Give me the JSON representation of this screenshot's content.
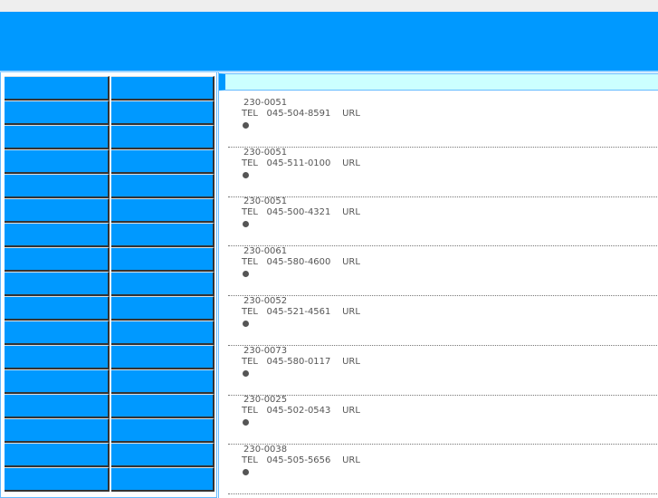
{
  "colors": {
    "brand": "#0099ff",
    "section_header": "#ccffff"
  },
  "sidebar": {
    "rows": 17,
    "columns": 2
  },
  "entries": [
    {
      "postal": "230-0051",
      "tel_label": "TEL",
      "tel": "045-504-8591",
      "url_label": "URL"
    },
    {
      "postal": "230-0051",
      "tel_label": "TEL",
      "tel": "045-511-0100",
      "url_label": "URL"
    },
    {
      "postal": "230-0051",
      "tel_label": "TEL",
      "tel": "045-500-4321",
      "url_label": "URL"
    },
    {
      "postal": "230-0061",
      "tel_label": "TEL",
      "tel": "045-580-4600",
      "url_label": "URL"
    },
    {
      "postal": "230-0052",
      "tel_label": "TEL",
      "tel": "045-521-4561",
      "url_label": "URL"
    },
    {
      "postal": "230-0073",
      "tel_label": "TEL",
      "tel": "045-580-0117",
      "url_label": "URL"
    },
    {
      "postal": "230-0025",
      "tel_label": "TEL",
      "tel": "045-502-0543",
      "url_label": "URL"
    },
    {
      "postal": "230-0038",
      "tel_label": "TEL",
      "tel": "045-505-5656",
      "url_label": "URL"
    }
  ]
}
